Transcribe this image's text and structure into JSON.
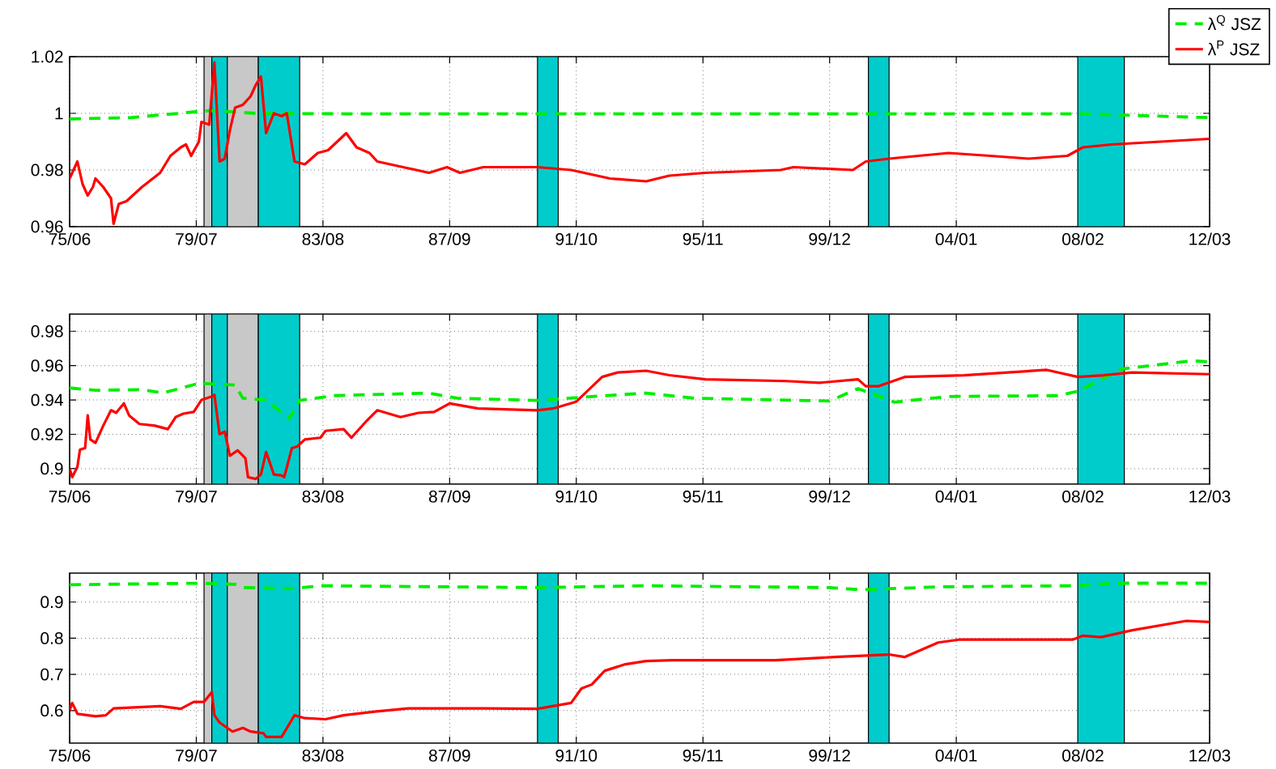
{
  "chart_data": [
    {
      "type": "line",
      "xlim": [
        "1975-06",
        "2012-03"
      ],
      "ylim": [
        0.96,
        1.02
      ],
      "yticks": [
        0.96,
        0.98,
        1,
        1.02
      ],
      "xticks": [
        {
          "value": "1975-06",
          "label": "75/06"
        },
        {
          "value": "1979-07",
          "label": "79/07"
        },
        {
          "value": "1983-08",
          "label": "83/08"
        },
        {
          "value": "1987-09",
          "label": "87/09"
        },
        {
          "value": "1991-10",
          "label": "91/10"
        },
        {
          "value": "1995-11",
          "label": "95/11"
        },
        {
          "value": "1999-12",
          "label": "99/12"
        },
        {
          "value": "2004-01",
          "label": "04/01"
        },
        {
          "value": "2008-02",
          "label": "08/02"
        },
        {
          "value": "2012-03",
          "label": "12/03"
        }
      ],
      "grid": true,
      "legend": "top right",
      "bands": [
        {
          "axis": "x",
          "from": "1979-10",
          "to": "1981-07",
          "color": "#c8c8c8"
        },
        {
          "axis": "x",
          "from": "1980-01",
          "to": "1980-07",
          "color": "#00cccc"
        },
        {
          "axis": "x",
          "from": "1981-07",
          "to": "1982-11",
          "color": "#00cccc"
        },
        {
          "axis": "x",
          "from": "1990-07",
          "to": "1991-03",
          "color": "#00cccc"
        },
        {
          "axis": "x",
          "from": "2001-03",
          "to": "2001-11",
          "color": "#00cccc"
        },
        {
          "axis": "x",
          "from": "2007-12",
          "to": "2009-06",
          "color": "#00cccc"
        }
      ],
      "series": [
        {
          "name": "λ$^{Q}$ JSZ",
          "color": "#00ee00",
          "line_style": "dashed",
          "x": [
            "1975-06",
            "1977-06",
            "1979-06",
            "1980-01",
            "1981-06",
            "1985-01",
            "2000-01",
            "2008-01",
            "2012-03"
          ],
          "values": [
            0.998,
            0.9985,
            1.0005,
            1.001,
            1.0,
            0.9998,
            0.9998,
            0.9998,
            0.9985
          ]
        },
        {
          "name": "λ$^{P}$ JSZ",
          "color": "#ff0000",
          "line_style": "solid",
          "x": [
            "1975-06",
            "1975-09",
            "1975-11",
            "1976-01",
            "1976-03",
            "1976-04",
            "1976-07",
            "1976-10",
            "1976-11",
            "1977-01",
            "1977-04",
            "1977-10",
            "1978-05",
            "1978-09",
            "1979-01",
            "1979-03",
            "1979-05",
            "1979-08",
            "1979-09",
            "1979-12",
            "1980-02",
            "1980-04",
            "1980-06",
            "1980-08",
            "1980-10",
            "1981-01",
            "1981-04",
            "1981-06",
            "1981-08",
            "1981-10",
            "1982-01",
            "1982-04",
            "1982-06",
            "1982-09",
            "1983-01",
            "1983-06",
            "1983-10",
            "1984-05",
            "1984-09",
            "1985-02",
            "1985-05",
            "1986-03",
            "1987-01",
            "1987-08",
            "1988-01",
            "1988-10",
            "1990-07",
            "1991-08",
            "1992-11",
            "1994-01",
            "1994-10",
            "1995-12",
            "1998-05",
            "1998-10",
            "2000-09",
            "2001-02",
            "2001-11",
            "2003-10",
            "2005-02",
            "2006-05",
            "2007-08",
            "2008-02",
            "2009-01",
            "2012-03"
          ],
          "values": [
            0.977,
            0.983,
            0.975,
            0.971,
            0.974,
            0.977,
            0.974,
            0.97,
            0.961,
            0.968,
            0.969,
            0.974,
            0.979,
            0.985,
            0.988,
            0.989,
            0.985,
            0.99,
            0.997,
            0.996,
            1.018,
            0.983,
            0.984,
            0.994,
            1.002,
            1.003,
            1.006,
            1.01,
            1.013,
            0.993,
            1.0,
            0.999,
            1.0,
            0.983,
            0.982,
            0.986,
            0.987,
            0.993,
            0.988,
            0.986,
            0.983,
            0.981,
            0.979,
            0.981,
            0.979,
            0.981,
            0.981,
            0.98,
            0.977,
            0.976,
            0.978,
            0.979,
            0.98,
            0.981,
            0.98,
            0.983,
            0.984,
            0.986,
            0.985,
            0.984,
            0.985,
            0.988,
            0.989,
            0.991
          ]
        }
      ]
    },
    {
      "type": "line",
      "xlim": [
        "1975-06",
        "2012-03"
      ],
      "ylim": [
        0.891,
        0.99
      ],
      "yticks": [
        0.9,
        0.92,
        0.94,
        0.96,
        0.98
      ],
      "xticks": [
        {
          "value": "1975-06",
          "label": "75/06"
        },
        {
          "value": "1979-07",
          "label": "79/07"
        },
        {
          "value": "1983-08",
          "label": "83/08"
        },
        {
          "value": "1987-09",
          "label": "87/09"
        },
        {
          "value": "1991-10",
          "label": "91/10"
        },
        {
          "value": "1995-11",
          "label": "95/11"
        },
        {
          "value": "1999-12",
          "label": "99/12"
        },
        {
          "value": "2004-01",
          "label": "04/01"
        },
        {
          "value": "2008-02",
          "label": "08/02"
        },
        {
          "value": "2012-03",
          "label": "12/03"
        }
      ],
      "grid": true,
      "bands": [
        {
          "axis": "x",
          "from": "1979-10",
          "to": "1981-07",
          "color": "#c8c8c8"
        },
        {
          "axis": "x",
          "from": "1980-01",
          "to": "1980-07",
          "color": "#00cccc"
        },
        {
          "axis": "x",
          "from": "1981-07",
          "to": "1982-11",
          "color": "#00cccc"
        },
        {
          "axis": "x",
          "from": "1990-07",
          "to": "1991-03",
          "color": "#00cccc"
        },
        {
          "axis": "x",
          "from": "2001-03",
          "to": "2001-11",
          "color": "#00cccc"
        },
        {
          "axis": "x",
          "from": "2007-12",
          "to": "2009-06",
          "color": "#00cccc"
        }
      ],
      "series": [
        {
          "color": "#00ee00",
          "line_style": "dashed",
          "x": [
            "1975-06",
            "1976-04",
            "1977-10",
            "1978-06",
            "1979-08",
            "1980-10",
            "1981-01",
            "1981-10",
            "1982-07",
            "1982-11",
            "1983-12",
            "1987-01",
            "1987-12",
            "1990-07",
            "1992-04",
            "1994-01",
            "1995-08",
            "1999-12",
            "2000-11",
            "2002-01",
            "2003-10",
            "2007-04",
            "2007-12",
            "2009-05",
            "2011-08",
            "2012-03"
          ],
          "values": [
            0.947,
            0.9456,
            0.946,
            0.944,
            0.9497,
            0.9487,
            0.941,
            0.94,
            0.929,
            0.9397,
            0.9425,
            0.944,
            0.941,
            0.9397,
            0.942,
            0.944,
            0.941,
            0.9394,
            0.9466,
            0.9387,
            0.942,
            0.9425,
            0.945,
            0.958,
            0.9628,
            0.9622
          ]
        },
        {
          "color": "#ff0000",
          "line_style": "solid",
          "x": [
            "1975-06",
            "1975-07",
            "1975-09",
            "1975-10",
            "1975-12",
            "1976-01",
            "1976-02",
            "1976-04",
            "1976-07",
            "1976-10",
            "1976-12",
            "1977-03",
            "1977-05",
            "1977-09",
            "1978-03",
            "1978-08",
            "1978-11",
            "1979-02",
            "1979-06",
            "1979-09",
            "1980-01",
            "1980-02",
            "1980-04",
            "1980-06",
            "1980-08",
            "1980-11",
            "1981-02",
            "1981-03",
            "1981-06",
            "1981-08",
            "1981-10",
            "1982-01",
            "1982-04",
            "1982-05",
            "1982-08",
            "1982-10",
            "1983-01",
            "1983-07",
            "1983-09",
            "1984-04",
            "1984-07",
            "1985-01",
            "1985-05",
            "1986-02",
            "1986-09",
            "1987-03",
            "1987-09",
            "1988-08",
            "1990-07",
            "1991-01",
            "1991-10",
            "1992-08",
            "1993-02",
            "1994-01",
            "1994-10",
            "1995-12",
            "1998-07",
            "1999-08",
            "2000-11",
            "2001-02",
            "2001-07",
            "2002-05",
            "2004-04",
            "2006-12",
            "2007-12",
            "2008-10",
            "2009-09",
            "2012-03"
          ],
          "values": [
            0.9,
            0.895,
            0.901,
            0.911,
            0.912,
            0.931,
            0.917,
            0.915,
            0.925,
            0.934,
            0.9325,
            0.938,
            0.931,
            0.926,
            0.925,
            0.923,
            0.93,
            0.932,
            0.933,
            0.94,
            0.942,
            0.943,
            0.92,
            0.9216,
            0.9075,
            0.9106,
            0.906,
            0.895,
            0.894,
            0.8966,
            0.9097,
            0.8966,
            0.896,
            0.895,
            0.912,
            0.9128,
            0.917,
            0.918,
            0.922,
            0.923,
            0.918,
            0.928,
            0.934,
            0.93,
            0.9325,
            0.933,
            0.938,
            0.935,
            0.934,
            0.935,
            0.939,
            0.9534,
            0.956,
            0.957,
            0.9544,
            0.952,
            0.951,
            0.95,
            0.952,
            0.948,
            0.948,
            0.9534,
            0.9544,
            0.9575,
            0.9534,
            0.9544,
            0.956,
            0.955
          ]
        }
      ]
    },
    {
      "type": "line",
      "xlim": [
        "1975-06",
        "2012-03"
      ],
      "ylim": [
        0.51,
        0.98
      ],
      "yticks": [
        0.6,
        0.7,
        0.8,
        0.9
      ],
      "xticks": [
        {
          "value": "1975-06",
          "label": "75/06"
        },
        {
          "value": "1979-07",
          "label": "79/07"
        },
        {
          "value": "1983-08",
          "label": "83/08"
        },
        {
          "value": "1987-09",
          "label": "87/09"
        },
        {
          "value": "1991-10",
          "label": "91/10"
        },
        {
          "value": "1995-11",
          "label": "95/11"
        },
        {
          "value": "1999-12",
          "label": "99/12"
        },
        {
          "value": "2004-01",
          "label": "04/01"
        },
        {
          "value": "2008-02",
          "label": "08/02"
        },
        {
          "value": "2012-03",
          "label": "12/03"
        }
      ],
      "grid": true,
      "bands": [
        {
          "axis": "x",
          "from": "1979-10",
          "to": "1981-07",
          "color": "#c8c8c8"
        },
        {
          "axis": "x",
          "from": "1980-01",
          "to": "1980-07",
          "color": "#00cccc"
        },
        {
          "axis": "x",
          "from": "1981-07",
          "to": "1982-11",
          "color": "#00cccc"
        },
        {
          "axis": "x",
          "from": "1990-07",
          "to": "1991-03",
          "color": "#00cccc"
        },
        {
          "axis": "x",
          "from": "2001-03",
          "to": "2001-11",
          "color": "#00cccc"
        },
        {
          "axis": "x",
          "from": "2007-12",
          "to": "2009-06",
          "color": "#00cccc"
        }
      ],
      "series": [
        {
          "color": "#00ee00",
          "line_style": "dashed",
          "x": [
            "1975-06",
            "1979-08",
            "1980-10",
            "1981-01",
            "1982-08",
            "1983-07",
            "1990-07",
            "1994-01",
            "1999-12",
            "2000-12",
            "2003-06",
            "2007-10",
            "2009-03",
            "2012-03"
          ],
          "values": [
            0.948,
            0.952,
            0.949,
            0.94,
            0.937,
            0.945,
            0.94,
            0.945,
            0.94,
            0.934,
            0.942,
            0.945,
            0.952,
            0.952
          ]
        },
        {
          "color": "#ff0000",
          "line_style": "solid",
          "x": [
            "1975-06",
            "1975-07",
            "1975-09",
            "1976-04",
            "1976-08",
            "1976-11",
            "1978-05",
            "1979-01",
            "1979-06",
            "1979-10",
            "1980-01",
            "1980-02",
            "1980-04",
            "1980-09",
            "1981-01",
            "1981-04",
            "1981-09",
            "1981-10",
            "1982-04",
            "1982-09",
            "1983-01",
            "1983-09",
            "1984-04",
            "1985-04",
            "1986-05",
            "1988-10",
            "1990-07",
            "1991-04",
            "1991-08",
            "1991-12",
            "1992-04",
            "1992-09",
            "1993-05",
            "1994-01",
            "1994-11",
            "1998-03",
            "2000-02",
            "2001-11",
            "2002-05",
            "2003-06",
            "2004-02",
            "2007-10",
            "2008-02",
            "2008-09",
            "2009-09",
            "2011-06",
            "2012-03"
          ],
          "values": [
            0.601,
            0.621,
            0.591,
            0.584,
            0.587,
            0.606,
            0.612,
            0.605,
            0.624,
            0.624,
            0.651,
            0.587,
            0.567,
            0.542,
            0.552,
            0.542,
            0.537,
            0.527,
            0.527,
            0.587,
            0.579,
            0.576,
            0.587,
            0.597,
            0.606,
            0.606,
            0.605,
            0.616,
            0.621,
            0.661,
            0.672,
            0.71,
            0.728,
            0.737,
            0.739,
            0.739,
            0.748,
            0.755,
            0.748,
            0.788,
            0.796,
            0.796,
            0.807,
            0.803,
            0.822,
            0.848,
            0.845
          ]
        }
      ]
    }
  ]
}
